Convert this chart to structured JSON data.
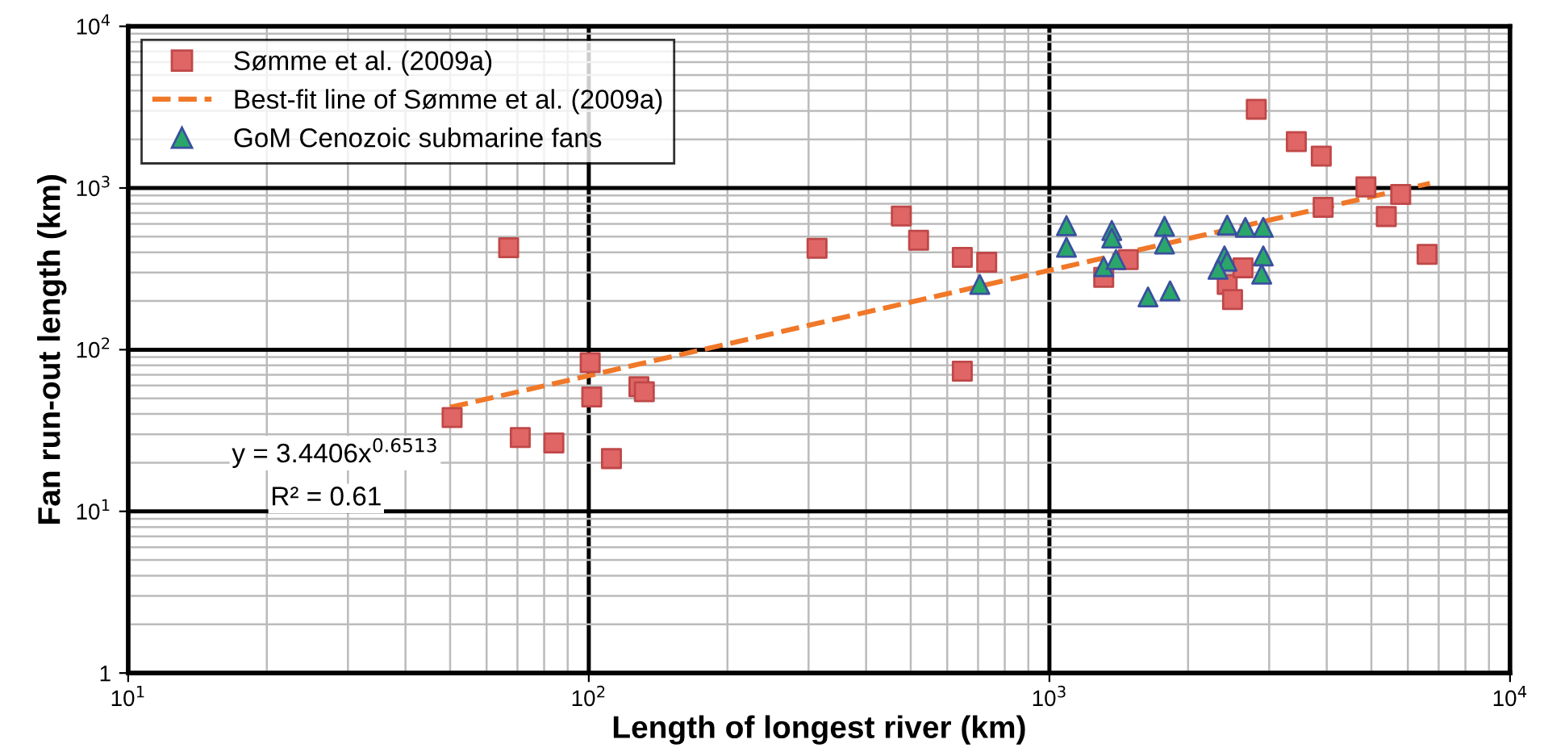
{
  "chart_data": {
    "type": "scatter",
    "xlabel": "Length of longest river (km)",
    "ylabel": "Fan run-out length (km)",
    "log": "xy",
    "xlim": [
      10,
      10000
    ],
    "ylim": [
      1,
      10000
    ],
    "xticks": [
      {
        "value": 10,
        "label": "10$^{1}$"
      },
      {
        "value": 100,
        "label": "10$^{2}$"
      },
      {
        "value": 1000,
        "label": "10$^{3}$"
      },
      {
        "value": 10000,
        "label": "10$^{4}$"
      }
    ],
    "yticks": [
      1,
      {
        "value": 10,
        "label": "10$^{1}$"
      },
      {
        "value": 100,
        "label": "10$^{2}$"
      },
      {
        "value": 1000,
        "label": "10$^{3}$"
      },
      {
        "value": 10000,
        "label": "10$^{4}$"
      }
    ],
    "grid": true,
    "legend": "top left",
    "annotations": [
      "y = 3.4406x$^{0.6513}$",
      "R² = 0.61"
    ],
    "series": [
      {
        "name": "Sømme et al. (2009a)",
        "marker": "square",
        "color": "#e06666",
        "x": [
          67,
          50.5,
          71,
          84,
          100.7,
          101.5,
          112,
          128.5,
          132,
          313,
          477,
          520,
          647,
          731,
          647,
          1312,
          1483,
          2813,
          3436,
          3892,
          4866,
          5790,
          3929,
          5387,
          6607,
          2432,
          2498,
          2632
        ],
        "values": [
          427,
          38,
          28.6,
          26.5,
          83,
          51,
          21.2,
          59,
          55,
          424,
          671,
          475,
          372,
          347,
          73.6,
          280,
          361,
          3070,
          1936,
          1574,
          1016,
          912,
          759,
          666,
          389,
          253,
          204,
          321
        ]
      },
      {
        "name": "Best-fit line of Sømme et al. (2009a)",
        "type": "line",
        "line_style": "dashed",
        "marker": "none",
        "color": "#f07828",
        "x": [
          50,
          6700
        ],
        "values": [
          44,
          1068
        ]
      },
      {
        "name": "GoM Cenozoic submarine fans",
        "marker": "triangle",
        "color": "#2aa66a",
        "x": [
          1089,
          1089,
          1366,
          1366,
          1312,
          1395,
          706,
          1778,
          1778,
          1637,
          1828,
          2432,
          2663,
          2913,
          2913,
          2890,
          2399,
          2430,
          2323
        ],
        "values": [
          585,
          430,
          546,
          490,
          326,
          361,
          253,
          580,
          450,
          212,
          231,
          589,
          571,
          571,
          380,
          293,
          380,
          352,
          314
        ]
      }
    ]
  }
}
